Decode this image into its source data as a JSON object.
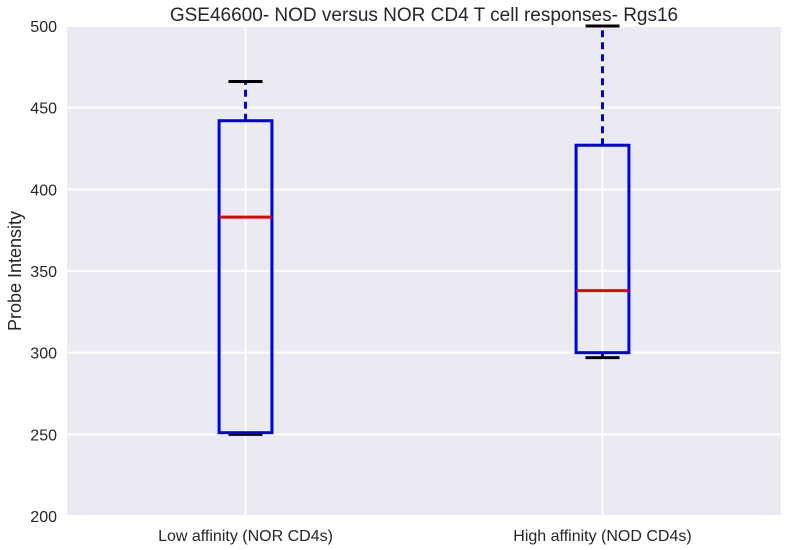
{
  "chart_data": {
    "type": "box",
    "title": "GSE46600- NOD versus NOR CD4 T cell responses- Rgs16",
    "xlabel": "",
    "ylabel": "Probe Intensity",
    "ylim": [
      200,
      500
    ],
    "yticks": [
      200,
      250,
      300,
      350,
      400,
      450,
      500
    ],
    "grid": true,
    "categories": [
      "Low affinity (NOR CD4s)",
      "High affinity (NOD CD4s)"
    ],
    "boxes": [
      {
        "category": "Low affinity (NOR CD4s)",
        "whisker_low": 250,
        "q1": 251,
        "median": 383,
        "q3": 442,
        "whisker_high": 466
      },
      {
        "category": "High affinity (NOD CD4s)",
        "whisker_low": 297,
        "q1": 300,
        "median": 338,
        "q3": 427,
        "whisker_high": 500
      }
    ],
    "colors": {
      "background": "#EAEAF2",
      "grid": "#FFFFFF",
      "box": "#0000E0",
      "median": "#E00000",
      "cap": "#000000"
    }
  }
}
